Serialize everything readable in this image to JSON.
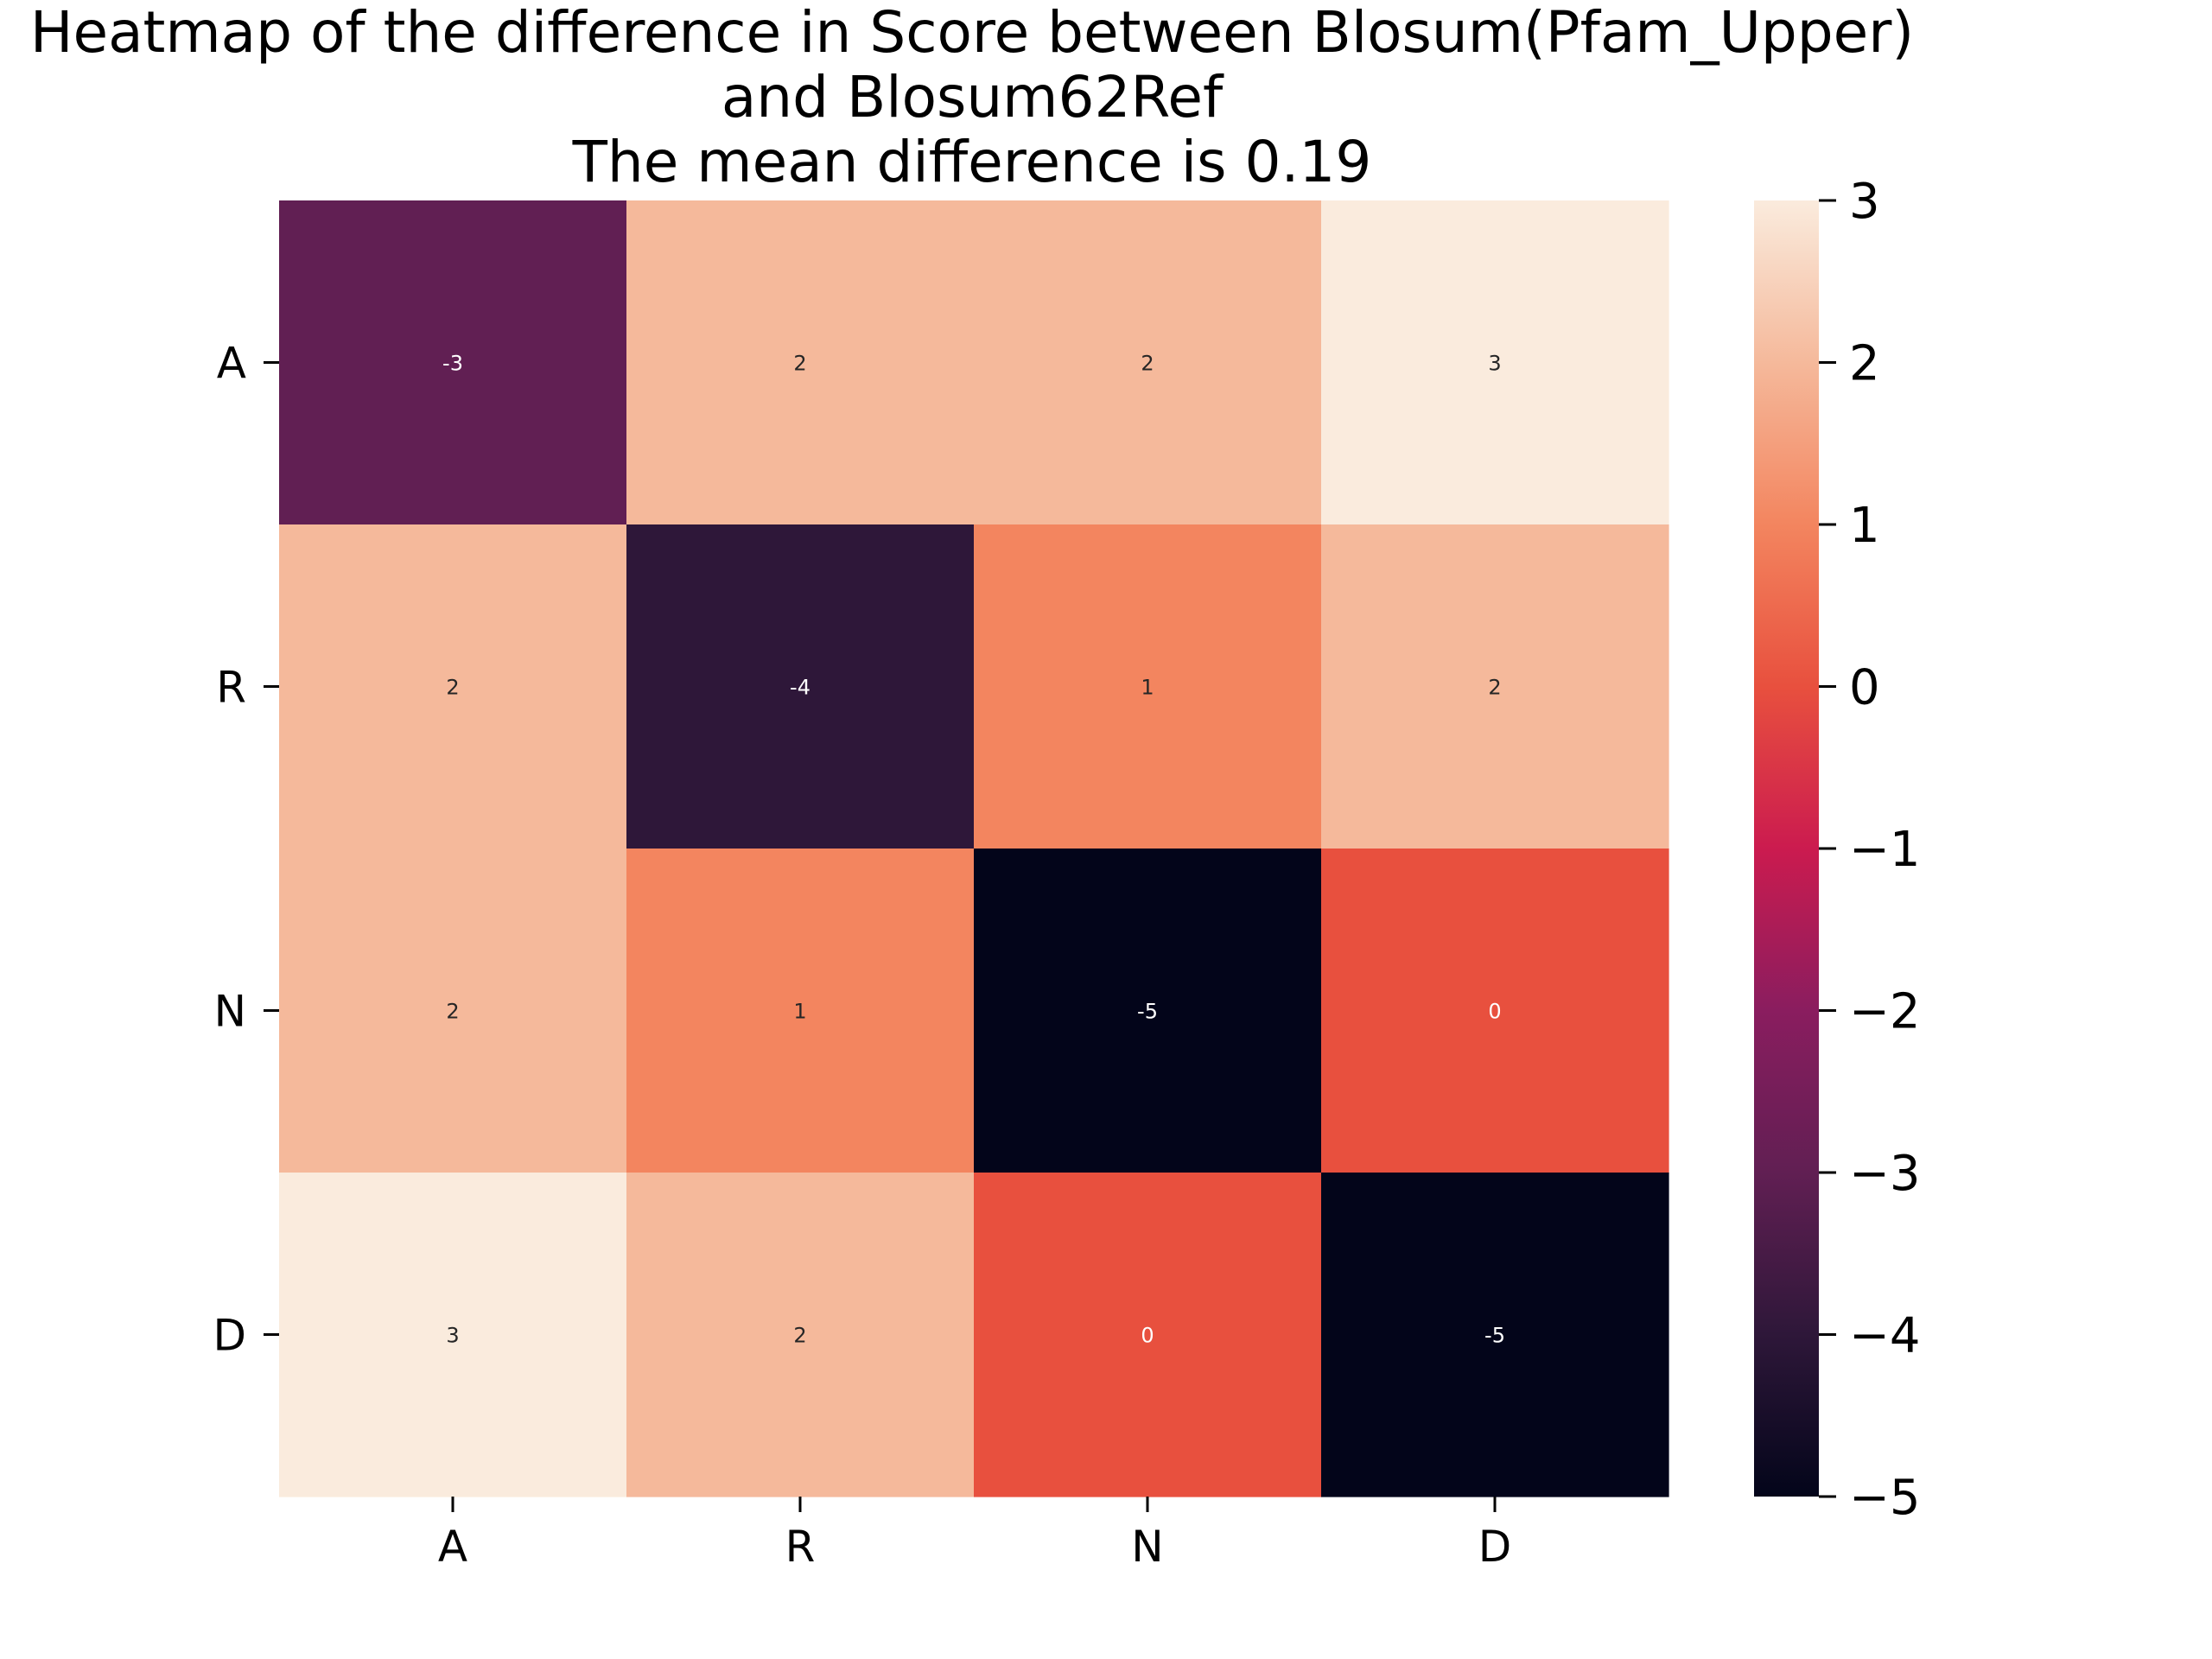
{
  "chart_data": {
    "type": "heatmap",
    "title_lines": [
      "Heatmap of the difference in Score between Blosum(Pfam_Upper)",
      "and Blosum62Ref",
      "The mean difference is 0.19"
    ],
    "x_categories": [
      "A",
      "R",
      "N",
      "D"
    ],
    "y_categories": [
      "A",
      "R",
      "N",
      "D"
    ],
    "values": [
      [
        -3,
        2,
        2,
        3
      ],
      [
        2,
        -4,
        1,
        2
      ],
      [
        2,
        1,
        -5,
        0
      ],
      [
        3,
        2,
        0,
        -5
      ]
    ],
    "cell_labels": [
      [
        "-3",
        "2",
        "2",
        "3"
      ],
      [
        "2",
        "-4",
        "1",
        "2"
      ],
      [
        "2",
        "1",
        "-5",
        "0"
      ],
      [
        "3",
        "2",
        "0",
        "-5"
      ]
    ],
    "colorbar": {
      "range": [
        -5,
        3
      ],
      "ticks": [
        3,
        2,
        1,
        0,
        -1,
        -2,
        -3,
        -4,
        -5
      ],
      "tick_labels": [
        "3",
        "2",
        "1",
        "0",
        "−1",
        "−2",
        "−3",
        "−4",
        "−5"
      ],
      "colormap": "rocket"
    }
  }
}
